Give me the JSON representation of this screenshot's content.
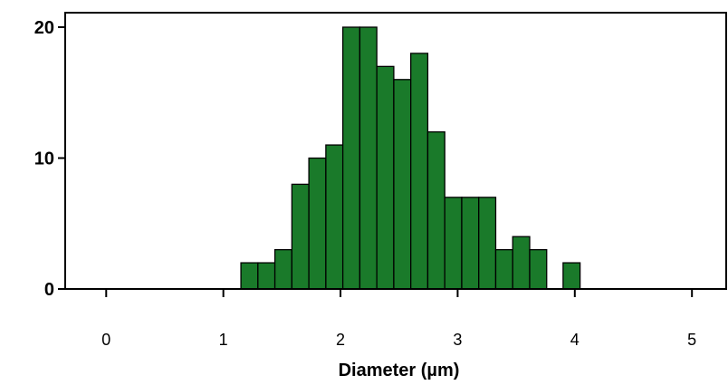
{
  "chart_data": {
    "type": "bar",
    "title": "",
    "xlabel": "Diameter (µm)",
    "ylabel": "",
    "xlim": [
      -0.35,
      5.3
    ],
    "ylim": [
      0,
      20
    ],
    "x_ticks": [
      "0",
      "1",
      "2",
      "3",
      "4",
      "5"
    ],
    "y_ticks": [
      "0",
      "10",
      "20"
    ],
    "bin_width": 0.145,
    "bins": [
      {
        "x": 1.15,
        "count": 2
      },
      {
        "x": 1.295,
        "count": 2
      },
      {
        "x": 1.44,
        "count": 3
      },
      {
        "x": 1.585,
        "count": 8
      },
      {
        "x": 1.73,
        "count": 10
      },
      {
        "x": 1.875,
        "count": 11
      },
      {
        "x": 2.02,
        "count": 20
      },
      {
        "x": 2.165,
        "count": 20
      },
      {
        "x": 2.31,
        "count": 17
      },
      {
        "x": 2.455,
        "count": 16
      },
      {
        "x": 2.6,
        "count": 18
      },
      {
        "x": 2.745,
        "count": 12
      },
      {
        "x": 2.89,
        "count": 7
      },
      {
        "x": 3.035,
        "count": 7
      },
      {
        "x": 3.18,
        "count": 7
      },
      {
        "x": 3.325,
        "count": 3
      },
      {
        "x": 3.47,
        "count": 4
      },
      {
        "x": 3.615,
        "count": 3
      },
      {
        "x": 3.9,
        "count": 2
      }
    ],
    "bar_color": "#1a7a2a",
    "bar_edge_color": "#000000",
    "grid": false,
    "legend": "none"
  }
}
